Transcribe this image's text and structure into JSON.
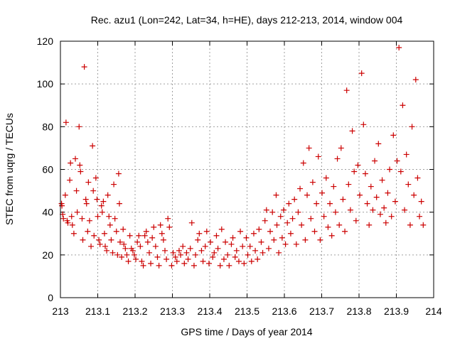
{
  "chart_data": {
    "type": "scatter",
    "title": "Rec. azu1 (Lon=242, Lat=34, h=HE), days 212-213, 2014, window 004",
    "xlabel": "GPS time / Days of year 2014",
    "ylabel": "STEC from uqrg / TECUs",
    "xlim": [
      213,
      214
    ],
    "ylim": [
      0,
      120
    ],
    "xticks": [
      "213",
      "213.1",
      "213.2",
      "213.3",
      "213.4",
      "213.5",
      "213.6",
      "213.7",
      "213.8",
      "213.9",
      "214"
    ],
    "yticks": [
      "0",
      "20",
      "40",
      "60",
      "80",
      "100",
      "120"
    ],
    "grid": true,
    "legend": "none",
    "marker": "plus",
    "color": "#cc0000",
    "series": [
      {
        "points": [
          [
            213.003,
            44
          ],
          [
            213.004,
            43
          ],
          [
            213.006,
            39
          ],
          [
            213.008,
            37
          ],
          [
            213.013,
            48
          ],
          [
            213.015,
            82
          ],
          [
            213.018,
            36
          ],
          [
            213.02,
            35
          ],
          [
            213.025,
            55
          ],
          [
            213.027,
            63
          ],
          [
            213.03,
            38
          ],
          [
            213.032,
            34
          ],
          [
            213.036,
            30
          ],
          [
            213.04,
            65
          ],
          [
            213.043,
            50
          ],
          [
            213.045,
            40
          ],
          [
            213.05,
            80
          ],
          [
            213.052,
            62
          ],
          [
            213.054,
            59
          ],
          [
            213.058,
            37
          ],
          [
            213.06,
            27
          ],
          [
            213.064,
            108
          ],
          [
            213.068,
            46
          ],
          [
            213.07,
            44
          ],
          [
            213.073,
            31
          ],
          [
            213.075,
            54
          ],
          [
            213.078,
            36
          ],
          [
            213.082,
            24
          ],
          [
            213.086,
            71
          ],
          [
            213.088,
            50
          ],
          [
            213.09,
            29
          ],
          [
            213.095,
            56
          ],
          [
            213.098,
            46
          ],
          [
            213.1,
            38
          ],
          [
            213.103,
            27
          ],
          [
            213.106,
            25
          ],
          [
            213.11,
            43
          ],
          [
            213.112,
            40
          ],
          [
            213.115,
            45
          ],
          [
            213.118,
            30
          ],
          [
            213.12,
            24
          ],
          [
            213.124,
            22
          ],
          [
            213.127,
            48
          ],
          [
            213.13,
            38
          ],
          [
            213.133,
            34
          ],
          [
            213.136,
            27
          ],
          [
            213.14,
            21
          ],
          [
            213.143,
            53
          ],
          [
            213.146,
            37
          ],
          [
            213.15,
            31
          ],
          [
            213.153,
            20
          ],
          [
            213.156,
            58
          ],
          [
            213.158,
            44
          ],
          [
            213.16,
            26
          ],
          [
            213.164,
            19
          ],
          [
            213.168,
            32
          ],
          [
            213.17,
            25
          ],
          [
            213.174,
            23
          ],
          [
            213.178,
            20
          ],
          [
            213.182,
            17
          ],
          [
            213.186,
            29
          ],
          [
            213.19,
            23
          ],
          [
            213.194,
            22
          ],
          [
            213.198,
            20
          ],
          [
            213.202,
            18
          ],
          [
            213.206,
            26
          ],
          [
            213.21,
            29
          ],
          [
            213.214,
            24
          ],
          [
            213.218,
            17
          ],
          [
            213.222,
            15
          ],
          [
            213.226,
            29
          ],
          [
            213.23,
            31
          ],
          [
            213.234,
            26
          ],
          [
            213.238,
            21
          ],
          [
            213.242,
            16
          ],
          [
            213.246,
            28
          ],
          [
            213.25,
            33
          ],
          [
            213.255,
            24
          ],
          [
            213.26,
            19
          ],
          [
            213.264,
            15
          ],
          [
            213.268,
            34
          ],
          [
            213.272,
            30
          ],
          [
            213.276,
            27
          ],
          [
            213.28,
            22
          ],
          [
            213.284,
            18
          ],
          [
            213.288,
            37
          ],
          [
            213.292,
            33
          ],
          [
            213.298,
            15
          ],
          [
            213.302,
            21
          ],
          [
            213.308,
            19
          ],
          [
            213.312,
            17
          ],
          [
            213.318,
            22
          ],
          [
            213.322,
            20
          ],
          [
            213.328,
            24
          ],
          [
            213.332,
            16
          ],
          [
            213.338,
            21
          ],
          [
            213.342,
            18
          ],
          [
            213.348,
            23
          ],
          [
            213.352,
            35
          ],
          [
            213.358,
            15
          ],
          [
            213.362,
            20
          ],
          [
            213.368,
            27
          ],
          [
            213.372,
            30
          ],
          [
            213.378,
            22
          ],
          [
            213.382,
            17
          ],
          [
            213.388,
            24
          ],
          [
            213.392,
            31
          ],
          [
            213.398,
            16
          ],
          [
            213.402,
            26
          ],
          [
            213.408,
            19
          ],
          [
            213.412,
            21
          ],
          [
            213.418,
            29
          ],
          [
            213.422,
            23
          ],
          [
            213.428,
            15
          ],
          [
            213.432,
            32
          ],
          [
            213.438,
            18
          ],
          [
            213.442,
            26
          ],
          [
            213.448,
            20
          ],
          [
            213.452,
            15
          ],
          [
            213.458,
            25
          ],
          [
            213.462,
            28
          ],
          [
            213.468,
            19
          ],
          [
            213.472,
            22
          ],
          [
            213.478,
            17
          ],
          [
            213.482,
            31
          ],
          [
            213.488,
            24
          ],
          [
            213.492,
            16
          ],
          [
            213.498,
            28
          ],
          [
            213.502,
            20
          ],
          [
            213.508,
            24
          ],
          [
            213.512,
            17
          ],
          [
            213.518,
            30
          ],
          [
            213.522,
            22
          ],
          [
            213.528,
            18
          ],
          [
            213.532,
            32
          ],
          [
            213.538,
            26
          ],
          [
            213.542,
            21
          ],
          [
            213.548,
            36
          ],
          [
            213.552,
            41
          ],
          [
            213.558,
            23
          ],
          [
            213.562,
            31
          ],
          [
            213.568,
            40
          ],
          [
            213.572,
            27
          ],
          [
            213.578,
            48
          ],
          [
            213.58,
            34
          ],
          [
            213.585,
            21
          ],
          [
            213.59,
            38
          ],
          [
            213.594,
            28
          ],
          [
            213.598,
            41
          ],
          [
            213.603,
            25
          ],
          [
            213.608,
            35
          ],
          [
            213.612,
            44
          ],
          [
            213.617,
            30
          ],
          [
            213.622,
            37
          ],
          [
            213.627,
            46
          ],
          [
            213.632,
            25
          ],
          [
            213.637,
            40
          ],
          [
            213.642,
            51
          ],
          [
            213.646,
            34
          ],
          [
            213.651,
            63
          ],
          [
            213.656,
            27
          ],
          [
            213.661,
            48
          ],
          [
            213.666,
            70
          ],
          [
            213.671,
            37
          ],
          [
            213.676,
            54
          ],
          [
            213.681,
            31
          ],
          [
            213.686,
            44
          ],
          [
            213.691,
            66
          ],
          [
            213.696,
            27
          ],
          [
            213.701,
            49
          ],
          [
            213.706,
            38
          ],
          [
            213.712,
            56
          ],
          [
            213.717,
            33
          ],
          [
            213.722,
            44
          ],
          [
            213.727,
            29
          ],
          [
            213.732,
            52
          ],
          [
            213.737,
            40
          ],
          [
            213.742,
            65
          ],
          [
            213.747,
            34
          ],
          [
            213.752,
            70
          ],
          [
            213.757,
            46
          ],
          [
            213.762,
            31
          ],
          [
            213.767,
            97
          ],
          [
            213.772,
            53
          ],
          [
            213.777,
            41
          ],
          [
            213.782,
            78
          ],
          [
            213.787,
            59
          ],
          [
            213.792,
            36
          ],
          [
            213.797,
            62
          ],
          [
            213.802,
            48
          ],
          [
            213.807,
            105
          ],
          [
            213.812,
            81
          ],
          [
            213.817,
            58
          ],
          [
            213.822,
            44
          ],
          [
            213.827,
            34
          ],
          [
            213.832,
            52
          ],
          [
            213.837,
            41
          ],
          [
            213.842,
            64
          ],
          [
            213.847,
            47
          ],
          [
            213.852,
            72
          ],
          [
            213.857,
            39
          ],
          [
            213.862,
            55
          ],
          [
            213.867,
            42
          ],
          [
            213.872,
            35
          ],
          [
            213.877,
            49
          ],
          [
            213.882,
            60
          ],
          [
            213.887,
            38
          ],
          [
            213.892,
            76
          ],
          [
            213.897,
            45
          ],
          [
            213.902,
            64
          ],
          [
            213.907,
            117
          ],
          [
            213.912,
            59
          ],
          [
            213.917,
            90
          ],
          [
            213.922,
            41
          ],
          [
            213.927,
            67
          ],
          [
            213.932,
            53
          ],
          [
            213.937,
            34
          ],
          [
            213.942,
            80
          ],
          [
            213.947,
            48
          ],
          [
            213.952,
            102
          ],
          [
            213.957,
            56
          ],
          [
            213.962,
            38
          ],
          [
            213.967,
            45
          ],
          [
            213.972,
            34
          ]
        ]
      }
    ]
  }
}
